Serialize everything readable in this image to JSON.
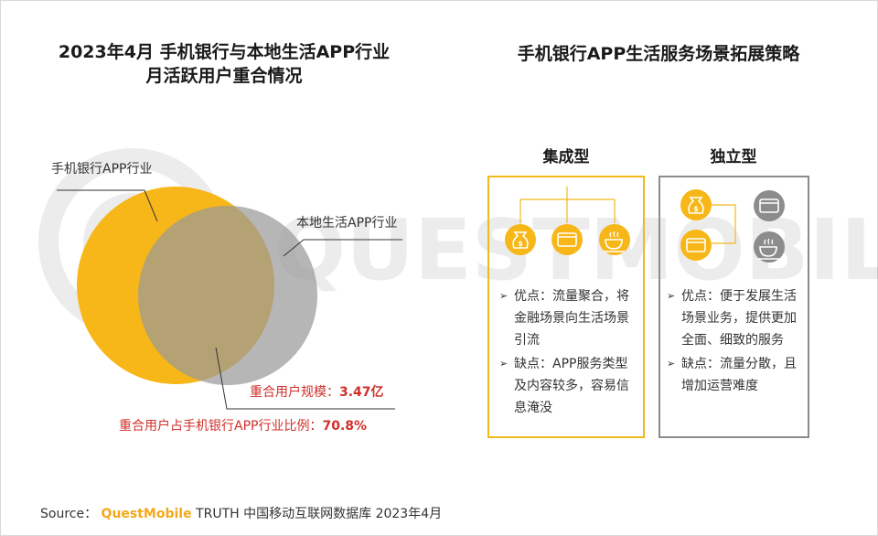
{
  "left": {
    "title_line1": "2023年4月 手机银行与本地生活APP行业",
    "title_line2": "月活跃用户重合情况",
    "label_bank": "手机银行APP行业",
    "label_local": "本地生活APP行业",
    "overlap_scale_label": "重合用户规模：",
    "overlap_scale_value": "3.47亿",
    "overlap_ratio_label": "重合用户占手机银行APP行业比例：",
    "overlap_ratio_value": "70.8%"
  },
  "right": {
    "title": "手机银行APP生活服务场景拓展策略",
    "integrated": {
      "title": "集成型",
      "pros": "优点：流量聚合，将金融场景向生活场景引流",
      "cons": "缺点：APP服务类型及内容较多，容易信息淹没"
    },
    "independent": {
      "title": "独立型",
      "pros": "优点：便于发展生活场景业务，提供更加全面、细致的服务",
      "cons": "缺点：流量分散，且增加运营难度"
    }
  },
  "watermark": "QUESTMOBILE",
  "source": {
    "prefix": "Source：",
    "brand": "QuestMobile",
    "rest": "TRUTH 中国移动互联网数据库 2023年4月"
  },
  "colors": {
    "accent": "#f2b91a",
    "gray": "#8c8c8c",
    "red": "#d0302a"
  },
  "icons": [
    "money-bag-icon",
    "card-icon",
    "coffee-icon"
  ]
}
